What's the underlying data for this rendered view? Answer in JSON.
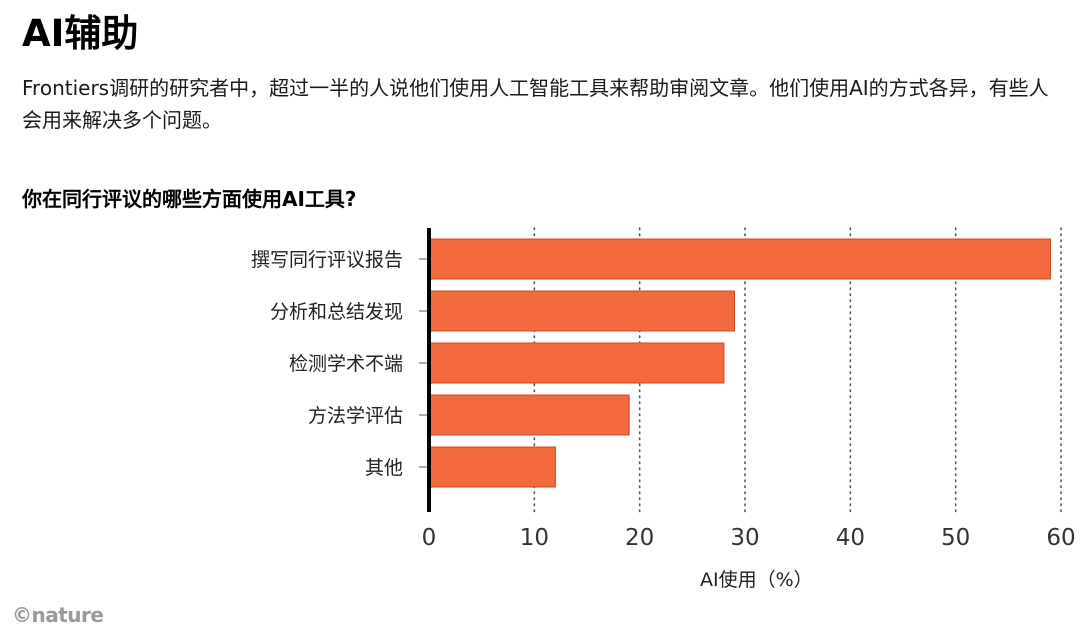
{
  "header": {
    "title": "AI辅助",
    "description": "Frontiers调研的研究者中，超过一半的人说他们使用人工智能工具来帮助审阅文章。他们使用AI的方式各异，有些人会用来解决多个问题。"
  },
  "credit": "©nature",
  "colors": {
    "bar": "#f26a3d",
    "axis": "#000000",
    "grid": "#555555"
  },
  "chart_data": {
    "type": "bar",
    "orientation": "horizontal",
    "title": "你在同行评议的哪些方面使用AI工具?",
    "xlabel": "AI使用（%）",
    "ylabel": "",
    "categories": [
      "撰写同行评议报告",
      "分析和总结发现",
      "检测学术不端",
      "方法学评估",
      "其他"
    ],
    "values": [
      59,
      29,
      28,
      19,
      12
    ],
    "xlim": [
      0,
      60
    ],
    "xticks": [
      "0",
      "10",
      "20",
      "30",
      "40",
      "50",
      "60"
    ],
    "grid": "vertical dotted"
  }
}
